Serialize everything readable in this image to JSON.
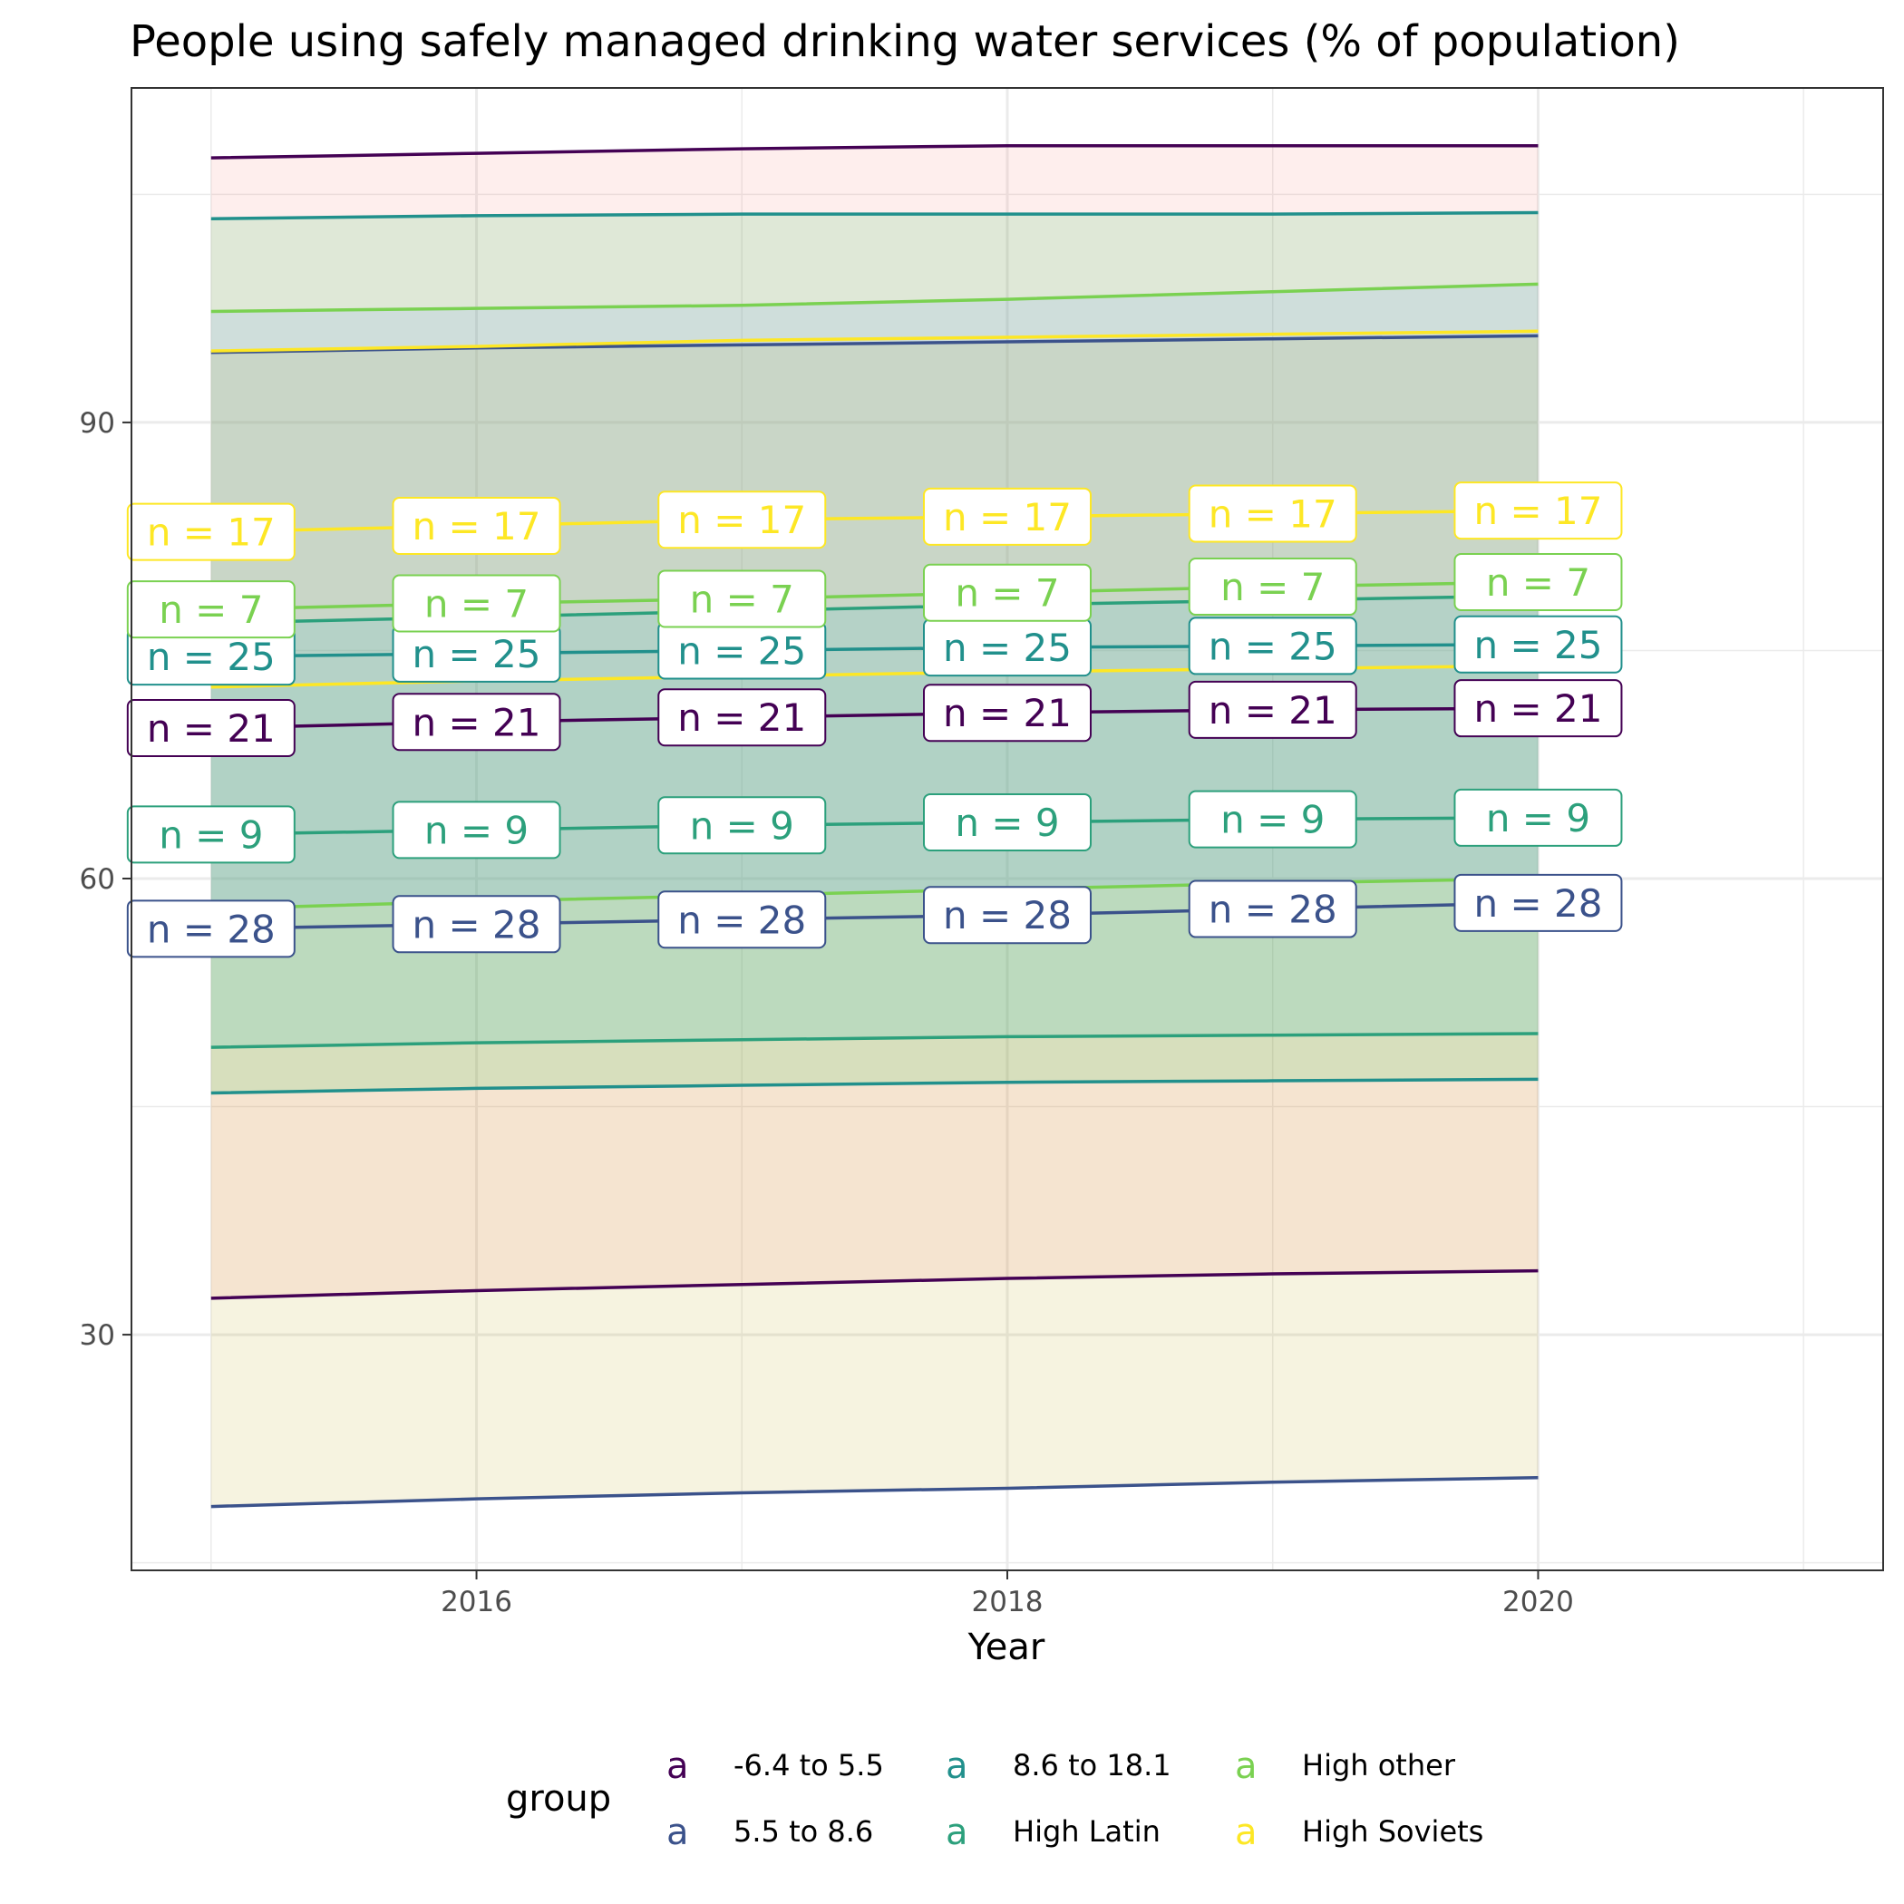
{
  "chart_data": {
    "type": "line",
    "title": "People using safely managed drinking water services (% of population)",
    "xlabel": "Year",
    "ylabel": "",
    "xlim": [
      2014.7,
      2021.3
    ],
    "ylim": [
      14.5,
      112
    ],
    "x_ticks": [
      2016,
      2018,
      2020
    ],
    "y_ticks": [
      30,
      60,
      90
    ],
    "x_minor": [
      2015,
      2017,
      2019,
      2021
    ],
    "y_minor": [
      15,
      45,
      75,
      105
    ],
    "grid": true,
    "legend_position": "bottom",
    "legend_title": "group",
    "legend_key_glyph": "a",
    "x": [
      2015,
      2016,
      2017,
      2018,
      2019,
      2020
    ],
    "series": [
      {
        "name": "-6.4 to 5.5",
        "color": "#440154",
        "band_color": "#f8766d",
        "mean": [
          69.9,
          70.3,
          70.6,
          70.9,
          71.1,
          71.2
        ],
        "upper": [
          107.4,
          107.7,
          108.0,
          108.2,
          108.2,
          108.2
        ],
        "lower": [
          32.4,
          32.9,
          33.3,
          33.7,
          34.0,
          34.2
        ],
        "n": [
          21,
          21,
          21,
          21,
          21,
          21
        ]
      },
      {
        "name": "5.5 to 8.6",
        "color": "#3b528b",
        "band_color": "#b79f00",
        "mean": [
          56.7,
          57.0,
          57.3,
          57.6,
          58.0,
          58.4
        ],
        "upper": [
          94.6,
          94.9,
          95.1,
          95.3,
          95.5,
          95.7
        ],
        "lower": [
          18.7,
          19.2,
          19.6,
          19.9,
          20.3,
          20.6
        ],
        "n": [
          28,
          28,
          28,
          28,
          28,
          28
        ]
      },
      {
        "name": "8.6 to 18.1",
        "color": "#21908c",
        "band_color": "#00ba38",
        "mean": [
          74.6,
          74.8,
          75.0,
          75.2,
          75.3,
          75.4
        ],
        "upper": [
          103.4,
          103.6,
          103.7,
          103.7,
          103.7,
          103.8
        ],
        "lower": [
          45.9,
          46.2,
          46.4,
          46.6,
          46.7,
          46.8
        ],
        "n": [
          25,
          25,
          25,
          25,
          25,
          25
        ]
      },
      {
        "name": "High Latin",
        "color": "#2ca07c",
        "band_color": "#00bfc4",
        "mean": [
          62.9,
          63.2,
          63.5,
          63.7,
          63.9,
          64.0
        ],
        "upper": [
          76.8,
          77.2,
          77.6,
          78.0,
          78.3,
          78.6
        ],
        "lower": [
          48.9,
          49.2,
          49.4,
          49.6,
          49.7,
          49.8
        ],
        "n": [
          9,
          9,
          9,
          9,
          9,
          9
        ]
      },
      {
        "name": "High other",
        "color": "#7ad151",
        "band_color": "#619cff",
        "mean": [
          77.7,
          78.1,
          78.4,
          78.8,
          79.2,
          79.5
        ],
        "upper": [
          97.3,
          97.5,
          97.7,
          98.1,
          98.6,
          99.1
        ],
        "lower": [
          58.0,
          58.5,
          58.9,
          59.3,
          59.7,
          60.0
        ],
        "n": [
          7,
          7,
          7,
          7,
          7,
          7
        ]
      },
      {
        "name": "High Soviets",
        "color": "#fde725",
        "band_color": "#d3d3d3",
        "mean": [
          82.8,
          83.2,
          83.6,
          83.8,
          84.0,
          84.2
        ],
        "upper": [
          94.7,
          95.0,
          95.4,
          95.6,
          95.8,
          96.0
        ],
        "lower": [
          72.6,
          73.0,
          73.3,
          73.6,
          73.8,
          74.0
        ],
        "n": [
          17,
          17,
          17,
          17,
          17,
          17
        ]
      }
    ]
  }
}
